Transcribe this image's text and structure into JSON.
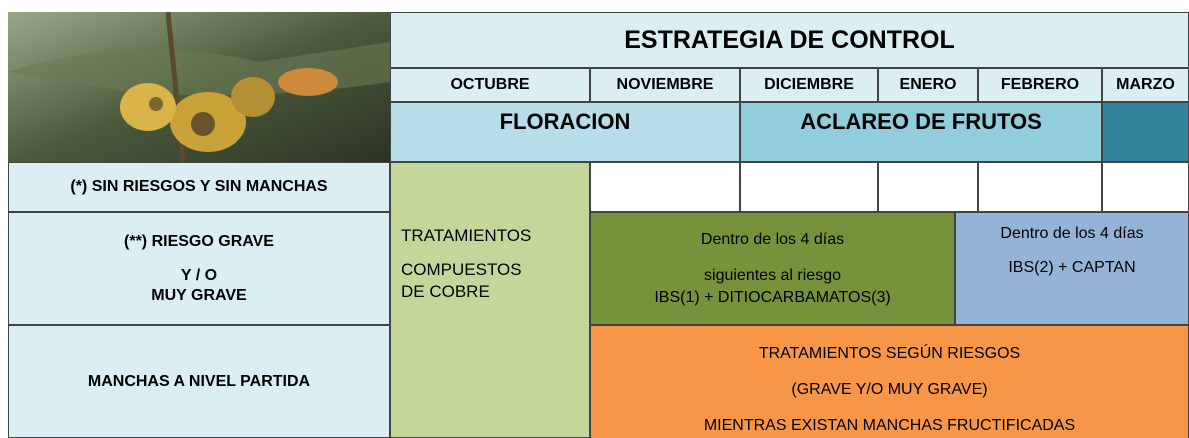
{
  "header": {
    "title": "ESTRATEGIA DE CONTROL"
  },
  "months": [
    "OCTUBRE",
    "NOVIEMBRE",
    "DICIEMBRE",
    "ENERO",
    "FEBRERO",
    "MARZO"
  ],
  "phases": [
    "FLORACION",
    "ACLAREO DE FRUTOS"
  ],
  "rows": [
    "(*)  SIN RIESGOS Y SIN MANCHAS",
    [
      "(**)  RIESGO GRAVE",
      "Y / O",
      "MUY GRAVE"
    ],
    "MANCHAS A NIVEL PARTIDA"
  ],
  "copper": [
    "TRATAMIENTOS",
    "COMPUESTOS",
    "DE      COBRE"
  ],
  "early": [
    "Dentro de los 4 días",
    "siguientes al riesgo",
    "IBS(1) + DITIOCARBAMATOS(3)"
  ],
  "late": [
    "Dentro de los 4 días",
    "IBS(2) + CAPTAN"
  ],
  "spots": [
    "TRATAMIENTOS SEGÚN RIESGOS",
    "(GRAVE Y/O MUY GRAVE)",
    "MIENTRAS EXISTAN MANCHAS FRUCTIFICADAS"
  ]
}
